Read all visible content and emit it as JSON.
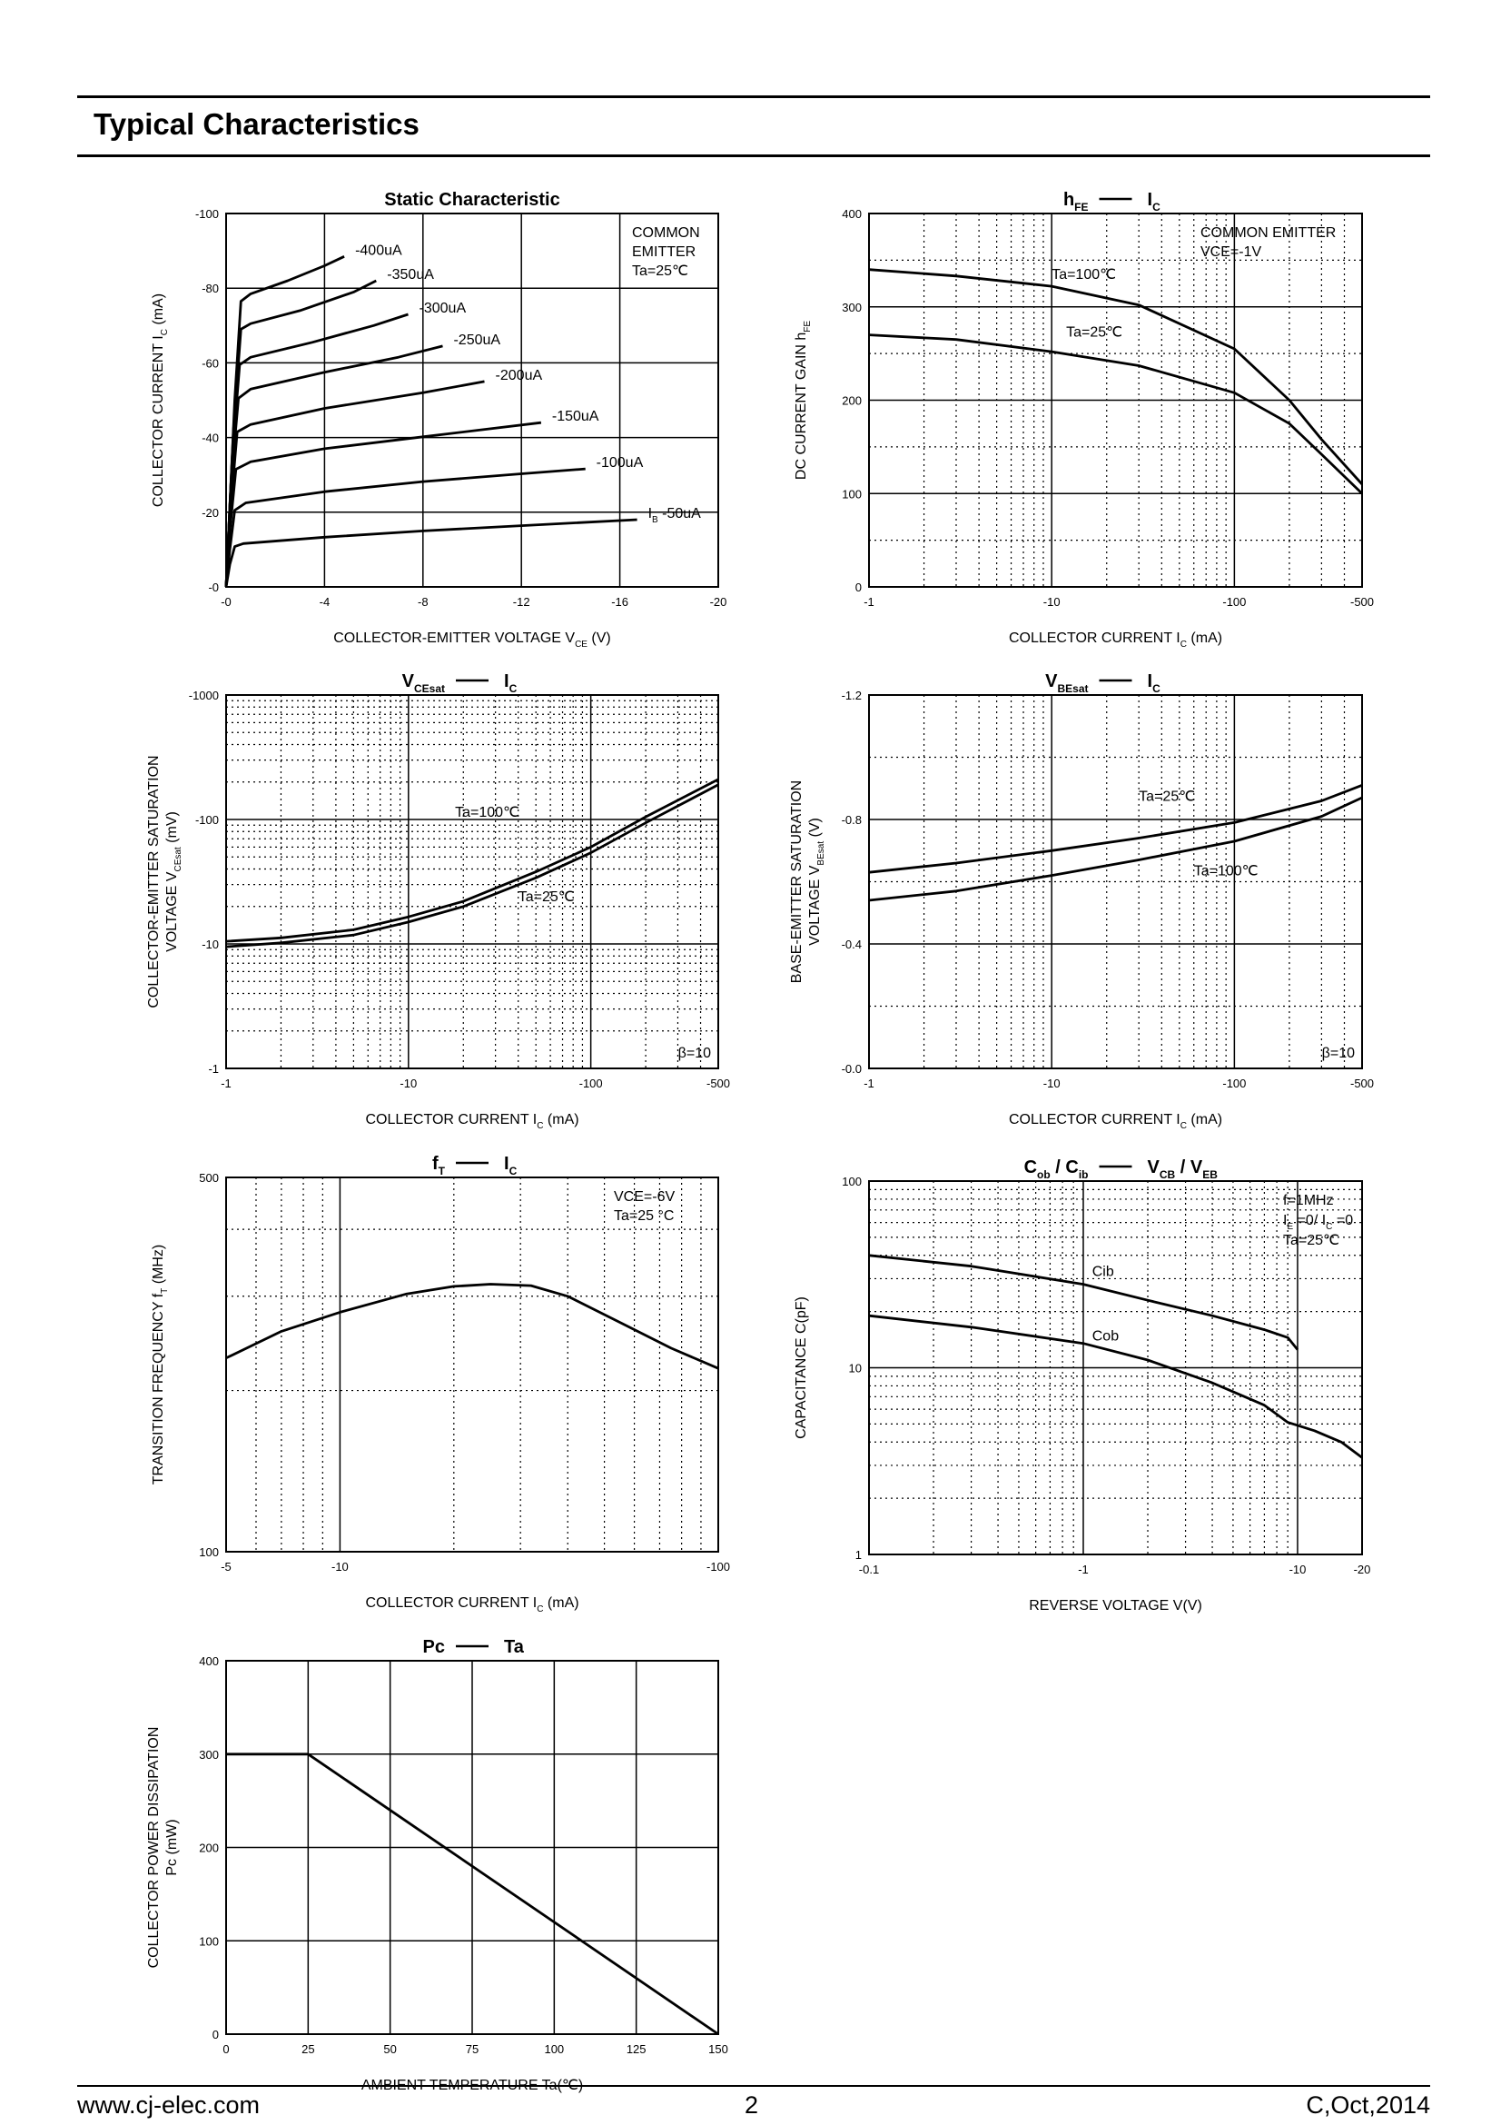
{
  "page": {
    "title": "Typical Characteristics",
    "footer_left": "www.cj-elec.com",
    "footer_center": "2",
    "footer_right": "C,Oct,2014"
  },
  "chart_data": [
    {
      "id": "static",
      "type": "line",
      "title": "Static Characteristic",
      "xlabel": "COLLECTOR-EMITTER VOLTAGE",
      "xlabel_symbol": "V",
      "xlabel_sub": "CE",
      "xlabel_unit": "(V)",
      "ylabel": "COLLECTOR CURRENT",
      "ylabel_symbol": "I",
      "ylabel_sub": "C",
      "ylabel_unit": "(mA)",
      "xscale": "linear",
      "yscale": "linear",
      "xlim": [
        0,
        20
      ],
      "ylim": [
        0,
        100
      ],
      "xticks": [
        0,
        4,
        8,
        12,
        16,
        20
      ],
      "xtick_labels": [
        "-0",
        "-4",
        "-8",
        "-12",
        "-16",
        "-20"
      ],
      "yticks": [
        0,
        20,
        40,
        60,
        80,
        100
      ],
      "ytick_labels": [
        "-0",
        "-20",
        "-40",
        "-60",
        "-80",
        "-100"
      ],
      "grid": "solid",
      "annotation": [
        "COMMON",
        "EMITTER",
        "Ta=25℃"
      ],
      "annotation_corner": "top-right",
      "series": [
        {
          "label": "-50uA",
          "label_prefix": "I",
          "label_sub": "B",
          "points": [
            [
              0,
              0
            ],
            [
              0.15,
              6
            ],
            [
              0.35,
              10.8
            ],
            [
              0.7,
              11.6
            ],
            [
              4,
              13.3
            ],
            [
              8,
              15
            ],
            [
              12,
              16.4
            ],
            [
              16.7,
              18
            ]
          ]
        },
        {
          "label": "-100uA",
          "points": [
            [
              0,
              0
            ],
            [
              0.15,
              10
            ],
            [
              0.35,
              20.5
            ],
            [
              0.8,
              22.5
            ],
            [
              4,
              25.5
            ],
            [
              8,
              28.2
            ],
            [
              12,
              30.3
            ],
            [
              14.6,
              31.6
            ]
          ]
        },
        {
          "label": "-150uA",
          "points": [
            [
              0,
              0
            ],
            [
              0.15,
              15
            ],
            [
              0.4,
              31.5
            ],
            [
              1,
              33.5
            ],
            [
              4,
              37
            ],
            [
              8,
              40.2
            ],
            [
              12.8,
              44
            ]
          ]
        },
        {
          "label": "-200uA",
          "points": [
            [
              0,
              0
            ],
            [
              0.2,
              22
            ],
            [
              0.45,
              41.5
            ],
            [
              1,
              43.5
            ],
            [
              4,
              47.8
            ],
            [
              8,
              52
            ],
            [
              10.5,
              55
            ]
          ]
        },
        {
          "label": "-250uA",
          "points": [
            [
              0,
              0
            ],
            [
              0.2,
              28
            ],
            [
              0.5,
              50.5
            ],
            [
              1,
              53
            ],
            [
              4,
              57.5
            ],
            [
              7,
              61.5
            ],
            [
              8.8,
              64.5
            ]
          ]
        },
        {
          "label": "-300uA",
          "points": [
            [
              0,
              0
            ],
            [
              0.25,
              35
            ],
            [
              0.55,
              59.5
            ],
            [
              1,
              61.5
            ],
            [
              3.5,
              65.5
            ],
            [
              6,
              70
            ],
            [
              7.4,
              73
            ]
          ]
        },
        {
          "label": "-350uA",
          "points": [
            [
              0,
              0
            ],
            [
              0.3,
              42
            ],
            [
              0.6,
              69
            ],
            [
              1,
              70.5
            ],
            [
              3,
              74
            ],
            [
              5.2,
              79
            ],
            [
              6.1,
              82
            ]
          ]
        },
        {
          "label": "-400uA",
          "points": [
            [
              0,
              0
            ],
            [
              0.35,
              50
            ],
            [
              0.6,
              76.5
            ],
            [
              1,
              78.5
            ],
            [
              2.5,
              82
            ],
            [
              4,
              86
            ],
            [
              4.8,
              88.5
            ]
          ]
        }
      ]
    },
    {
      "id": "hfe",
      "type": "line",
      "title_left": "h",
      "title_left_sub": "FE",
      "title_right": "I",
      "title_right_sub": "C",
      "xlabel": "COLLECTOR CURRENT",
      "xlabel_symbol": "I",
      "xlabel_sub": "C",
      "xlabel_unit": "(mA)",
      "ylabel": "DC CURRENT GAIN",
      "ylabel_symbol": "h",
      "ylabel_sub": "FE",
      "ylabel_unit": "",
      "xscale": "log",
      "yscale": "linear",
      "xlim": [
        1,
        500
      ],
      "ylim": [
        0,
        400
      ],
      "xticks": [
        1,
        10,
        100,
        500
      ],
      "xtick_labels": [
        "-1",
        "-10",
        "-100",
        "-500"
      ],
      "yticks": [
        0,
        100,
        200,
        300,
        400
      ],
      "ytick_labels": [
        "0",
        "100",
        "200",
        "300",
        "400"
      ],
      "grid": "log",
      "annotation": [
        "COMMON EMITTER",
        "VCE=-1V"
      ],
      "annotation_corner": "top-right",
      "series": [
        {
          "label": "Ta=100℃",
          "label_at": [
            10,
            330
          ],
          "points": [
            [
              1,
              340
            ],
            [
              3,
              333
            ],
            [
              10,
              322
            ],
            [
              30,
              302
            ],
            [
              100,
              255
            ],
            [
              200,
              200
            ],
            [
              300,
              158
            ],
            [
              500,
              110
            ]
          ]
        },
        {
          "label": "Ta=25℃",
          "label_at": [
            12,
            268
          ],
          "points": [
            [
              1,
              270
            ],
            [
              3,
              265
            ],
            [
              10,
              252
            ],
            [
              30,
              237
            ],
            [
              100,
              208
            ],
            [
              200,
              175
            ],
            [
              300,
              142
            ],
            [
              500,
              100
            ]
          ]
        }
      ]
    },
    {
      "id": "vcesat",
      "type": "line",
      "title_left": "V",
      "title_left_sub": "CEsat",
      "title_right": "I",
      "title_right_sub": "C",
      "xlabel": "COLLECTOR CURRENT",
      "xlabel_symbol": "I",
      "xlabel_sub": "C",
      "xlabel_unit": "(mA)",
      "ylabel": "COLLECTOR-EMITTER SATURATION",
      "ylabel2": "VOLTAGE",
      "ylabel_symbol": "V",
      "ylabel_sub": "CEsat",
      "ylabel_unit": "(mV)",
      "xscale": "log",
      "yscale": "log",
      "xlim": [
        1,
        500
      ],
      "ylim": [
        1,
        1000
      ],
      "xticks": [
        1,
        10,
        100,
        500
      ],
      "xtick_labels": [
        "-1",
        "-10",
        "-100",
        "-500"
      ],
      "yticks": [
        1,
        10,
        100,
        1000
      ],
      "ytick_labels": [
        "-1",
        "-10",
        "-100",
        "-1000"
      ],
      "grid": "log",
      "annotation": [
        "β=10"
      ],
      "annotation_corner": "bottom-right",
      "series": [
        {
          "label": "Ta=100℃",
          "label_at": [
            18,
            105
          ],
          "points": [
            [
              1,
              10.5
            ],
            [
              2,
              11.2
            ],
            [
              5,
              13
            ],
            [
              10,
              16.5
            ],
            [
              20,
              22
            ],
            [
              50,
              38
            ],
            [
              100,
              60
            ],
            [
              200,
              105
            ],
            [
              500,
              210
            ]
          ]
        },
        {
          "label": "Ta=25℃",
          "label_at": [
            40,
            22
          ],
          "points": [
            [
              1,
              9.5
            ],
            [
              2,
              10.2
            ],
            [
              5,
              11.8
            ],
            [
              10,
              15
            ],
            [
              20,
              20
            ],
            [
              50,
              34
            ],
            [
              100,
              54
            ],
            [
              200,
              94
            ],
            [
              500,
              190
            ]
          ]
        }
      ]
    },
    {
      "id": "vbesat",
      "type": "line",
      "title_left": "V",
      "title_left_sub": "BEsat",
      "title_right": "I",
      "title_right_sub": "C",
      "xlabel": "COLLECTOR CURRENT",
      "xlabel_symbol": "I",
      "xlabel_sub": "C",
      "xlabel_unit": "(mA)",
      "ylabel": "BASE-EMITTER SATURATION",
      "ylabel2": "VOLTAGE",
      "ylabel_symbol": "V",
      "ylabel_sub": "BEsat",
      "ylabel_unit": "(V)",
      "xscale": "log",
      "yscale": "linear",
      "xlim": [
        1,
        500
      ],
      "ylim": [
        0,
        1.2
      ],
      "xticks": [
        1,
        10,
        100,
        500
      ],
      "xtick_labels": [
        "-1",
        "-10",
        "-100",
        "-500"
      ],
      "yticks": [
        0,
        0.4,
        0.8,
        1.2
      ],
      "ytick_labels": [
        "-0.0",
        "-0.4",
        "-0.8",
        "-1.2"
      ],
      "grid": "log",
      "annotation": [
        "β=10"
      ],
      "annotation_corner": "bottom-right",
      "series": [
        {
          "label": "Ta=25℃",
          "label_at": [
            30,
            0.86
          ],
          "points": [
            [
              1,
              0.63
            ],
            [
              3,
              0.66
            ],
            [
              10,
              0.7
            ],
            [
              30,
              0.74
            ],
            [
              100,
              0.79
            ],
            [
              300,
              0.86
            ],
            [
              500,
              0.91
            ]
          ]
        },
        {
          "label": "Ta=100℃",
          "label_at": [
            60,
            0.62
          ],
          "points": [
            [
              1,
              0.54
            ],
            [
              3,
              0.57
            ],
            [
              10,
              0.62
            ],
            [
              30,
              0.67
            ],
            [
              100,
              0.73
            ],
            [
              300,
              0.81
            ],
            [
              500,
              0.87
            ]
          ]
        }
      ]
    },
    {
      "id": "ft",
      "type": "line",
      "title_left": "f",
      "title_left_sub": "T",
      "title_right": "I",
      "title_right_sub": "C",
      "xlabel": "COLLECTOR CURRENT",
      "xlabel_symbol": "I",
      "xlabel_sub": "C",
      "xlabel_unit": "(mA)",
      "ylabel": "TRANSITION FREQUENCY",
      "ylabel_symbol": "f",
      "ylabel_sub": "T",
      "ylabel_unit": "(MHz)",
      "xscale": "log",
      "yscale": "log",
      "xlim": [
        5,
        100
      ],
      "ylim": [
        100,
        500
      ],
      "xticks": [
        5,
        10,
        100
      ],
      "xtick_labels": [
        "-5",
        "-10",
        "-100"
      ],
      "yticks": [
        100,
        500
      ],
      "ytick_labels": [
        "100",
        "500"
      ],
      "grid": "log",
      "annotation": [
        "VCE=-6V",
        "Ta=25 °C"
      ],
      "annotation_corner": "top-right",
      "series": [
        {
          "label": "",
          "points": [
            [
              5,
              230
            ],
            [
              7,
              258
            ],
            [
              10,
              280
            ],
            [
              15,
              303
            ],
            [
              20,
              313
            ],
            [
              25,
              316
            ],
            [
              32,
              314
            ],
            [
              40,
              300
            ],
            [
              55,
              268
            ],
            [
              75,
              240
            ],
            [
              100,
              220
            ]
          ]
        }
      ]
    },
    {
      "id": "cap",
      "type": "line",
      "title_left": "C",
      "title_left_sub": "ob",
      "title_left2": "/ C",
      "title_left2_sub": "ib",
      "title_right": "V",
      "title_right_sub": "CB",
      "title_right2": "/ V",
      "title_right2_sub": "EB",
      "xlabel": "REVERSE VOLTAGE",
      "xlabel_symbol": "V",
      "xlabel_sub": "",
      "xlabel_unit": "(V)",
      "ylabel": "CAPACITANCE",
      "ylabel_symbol": "C",
      "ylabel_sub": "",
      "ylabel_unit": "(pF)",
      "xscale": "log",
      "yscale": "log",
      "xlim": [
        0.1,
        20
      ],
      "ylim": [
        1,
        100
      ],
      "xticks": [
        0.1,
        1,
        10,
        20
      ],
      "xtick_labels": [
        "-0.1",
        "-1",
        "-10",
        "-20"
      ],
      "yticks": [
        1,
        10,
        100
      ],
      "ytick_labels": [
        "1",
        "10",
        "100"
      ],
      "grid": "log",
      "annotation_lines": [
        {
          "t": "f=1MHz"
        },
        {
          "t": "I",
          "sub": "E",
          "t2": "=0/ I",
          "sub2": "C",
          "t3": "=0"
        },
        {
          "t": "Ta=25℃"
        }
      ],
      "annotation_corner": "top-right",
      "series": [
        {
          "label": "Cib",
          "label_at": [
            1.1,
            31
          ],
          "points": [
            [
              0.1,
              40
            ],
            [
              0.3,
              35
            ],
            [
              1,
              28
            ],
            [
              2,
              23
            ],
            [
              4,
              19
            ],
            [
              7,
              16
            ],
            [
              9,
              14.5
            ],
            [
              10,
              12.5
            ]
          ]
        },
        {
          "label": "Cob",
          "label_at": [
            1.1,
            14
          ],
          "points": [
            [
              0.1,
              19
            ],
            [
              0.3,
              16.5
            ],
            [
              1,
              13.5
            ],
            [
              2,
              11
            ],
            [
              4,
              8.3
            ],
            [
              7,
              6.3
            ],
            [
              9,
              5.1
            ],
            [
              12,
              4.6
            ],
            [
              16,
              4
            ],
            [
              20,
              3.3
            ]
          ]
        }
      ]
    },
    {
      "id": "pc",
      "type": "line",
      "title_left": "Pc",
      "title_left_sub": "",
      "title_right": "Ta",
      "title_right_sub": "",
      "xlabel": "AMBIENT TEMPERATURE",
      "xlabel_symbol": "Ta",
      "xlabel_sub": "",
      "xlabel_unit": "(℃)",
      "ylabel": "COLLECTOR POWER DISSIPATION",
      "ylabel2": "Pc",
      "ylabel_symbol": "",
      "ylabel_sub": "",
      "ylabel_unit": "(mW)",
      "xscale": "linear",
      "yscale": "linear",
      "xlim": [
        0,
        150
      ],
      "ylim": [
        0,
        400
      ],
      "xticks": [
        0,
        25,
        50,
        75,
        100,
        125,
        150
      ],
      "xtick_labels": [
        "0",
        "25",
        "50",
        "75",
        "100",
        "125",
        "150"
      ],
      "yticks": [
        0,
        100,
        200,
        300,
        400
      ],
      "ytick_labels": [
        "0",
        "100",
        "200",
        "300",
        "400"
      ],
      "grid": "solid",
      "series": [
        {
          "label": "",
          "points": [
            [
              0,
              300
            ],
            [
              25,
              300
            ],
            [
              150,
              0
            ]
          ]
        }
      ]
    }
  ]
}
